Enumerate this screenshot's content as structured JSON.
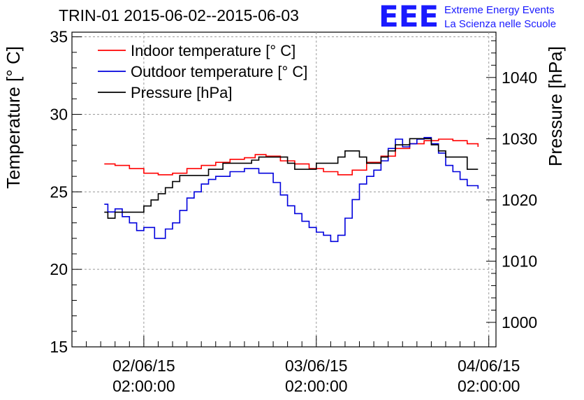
{
  "chart_data": {
    "type": "line",
    "title": "TRIN-01 2015-06-02--2015-06-03",
    "ylabel": "Temperature [° C]",
    "y2label": "Pressure [hPa]",
    "ylim": [
      15,
      35.3
    ],
    "y2lim": [
      996,
      1047.4
    ],
    "yticks": [
      "15",
      "20",
      "25",
      "30",
      "35"
    ],
    "y2ticks": [
      "1000",
      "1010",
      "1020",
      "1030",
      "1040"
    ],
    "xlim": [
      -10.0,
      49.0
    ],
    "xticks": [
      {
        "x": 0,
        "date": "02/06/15",
        "time": "02:00:00"
      },
      {
        "x": 24,
        "date": "03/06/15",
        "time": "02:00:00"
      },
      {
        "x": 48,
        "date": "04/06/15",
        "time": "02:00:00"
      }
    ],
    "grid": true,
    "legend_position": "top-left",
    "series": [
      {
        "name": "Indoor temperature [° C]",
        "axis": "left",
        "color": "#ff0000",
        "x": [
          -5.5,
          -4,
          -2,
          0,
          2,
          4,
          6,
          8,
          10,
          12,
          14,
          15.5,
          17,
          19,
          21,
          23,
          25,
          27,
          29,
          31,
          33,
          35,
          37,
          39,
          41,
          43,
          45,
          46.5
        ],
        "y": [
          26.8,
          26.7,
          26.5,
          26.2,
          26.1,
          26.2,
          26.5,
          26.7,
          26.9,
          27.1,
          27.2,
          27.4,
          27.3,
          27.0,
          26.8,
          26.5,
          26.3,
          26.1,
          26.4,
          26.9,
          27.3,
          27.8,
          28.1,
          28.3,
          28.4,
          28.3,
          28.1,
          27.9
        ]
      },
      {
        "name": "Outdoor temperature [° C]",
        "axis": "left",
        "color": "#0000dd",
        "x": [
          -5.5,
          -5,
          -4,
          -3,
          -2,
          -1,
          0,
          1.5,
          3,
          4,
          5,
          6,
          7,
          8,
          9,
          10,
          12,
          14,
          16,
          18,
          19,
          20,
          21,
          22,
          23,
          24,
          25,
          26,
          27,
          28,
          29,
          30,
          31,
          32,
          33,
          34,
          35,
          36,
          37,
          38,
          39,
          40,
          41,
          42,
          43,
          44,
          45,
          46.5
        ],
        "y": [
          24.2,
          23.7,
          23.9,
          23.4,
          23.0,
          22.5,
          22.7,
          22.0,
          22.6,
          23.0,
          23.8,
          24.6,
          25.0,
          25.5,
          25.8,
          26.0,
          26.3,
          26.5,
          26.2,
          25.6,
          24.8,
          24.1,
          23.6,
          23.1,
          22.7,
          22.4,
          22.2,
          21.8,
          22.2,
          23.3,
          24.5,
          25.5,
          26.0,
          26.4,
          27.0,
          27.8,
          28.4,
          27.9,
          28.1,
          28.4,
          28.5,
          28.1,
          27.5,
          26.7,
          26.3,
          25.8,
          25.4,
          25.2
        ]
      },
      {
        "name": "Pressure [hPa]",
        "axis": "right",
        "color": "#000000",
        "x": [
          -5.5,
          -5,
          -4,
          -3,
          -2,
          -1,
          0,
          1,
          2,
          3,
          4,
          5,
          6,
          7,
          8,
          9,
          10,
          11,
          12,
          14,
          15,
          16,
          17,
          18,
          19,
          20,
          21,
          22,
          23,
          24,
          25,
          26,
          27,
          28,
          29,
          30,
          31,
          32,
          33,
          34,
          35,
          36,
          37,
          38,
          39,
          40,
          41,
          42,
          43,
          44,
          45,
          46.5
        ],
        "y": [
          1018.0,
          1017.0,
          1018.0,
          1018.0,
          1018.0,
          1018.0,
          1019.0,
          1020.0,
          1021.0,
          1022.0,
          1023.0,
          1024.0,
          1024.0,
          1024.0,
          1024.0,
          1025.0,
          1025.0,
          1026.0,
          1026.0,
          1026.0,
          1026.5,
          1027.0,
          1027.0,
          1027.0,
          1027.0,
          1026.0,
          1025.0,
          1025.0,
          1025.0,
          1026.0,
          1026.0,
          1026.0,
          1027.0,
          1028.0,
          1028.0,
          1027.0,
          1026.0,
          1026.0,
          1027.0,
          1028.0,
          1029.0,
          1029.0,
          1030.0,
          1030.0,
          1030.0,
          1029.0,
          1028.0,
          1027.0,
          1027.0,
          1027.0,
          1025.0,
          1025.0
        ]
      }
    ]
  },
  "logo": {
    "mark": "EEE",
    "line1": "Extreme Energy Events",
    "line2": "La Scienza nelle Scuole"
  }
}
